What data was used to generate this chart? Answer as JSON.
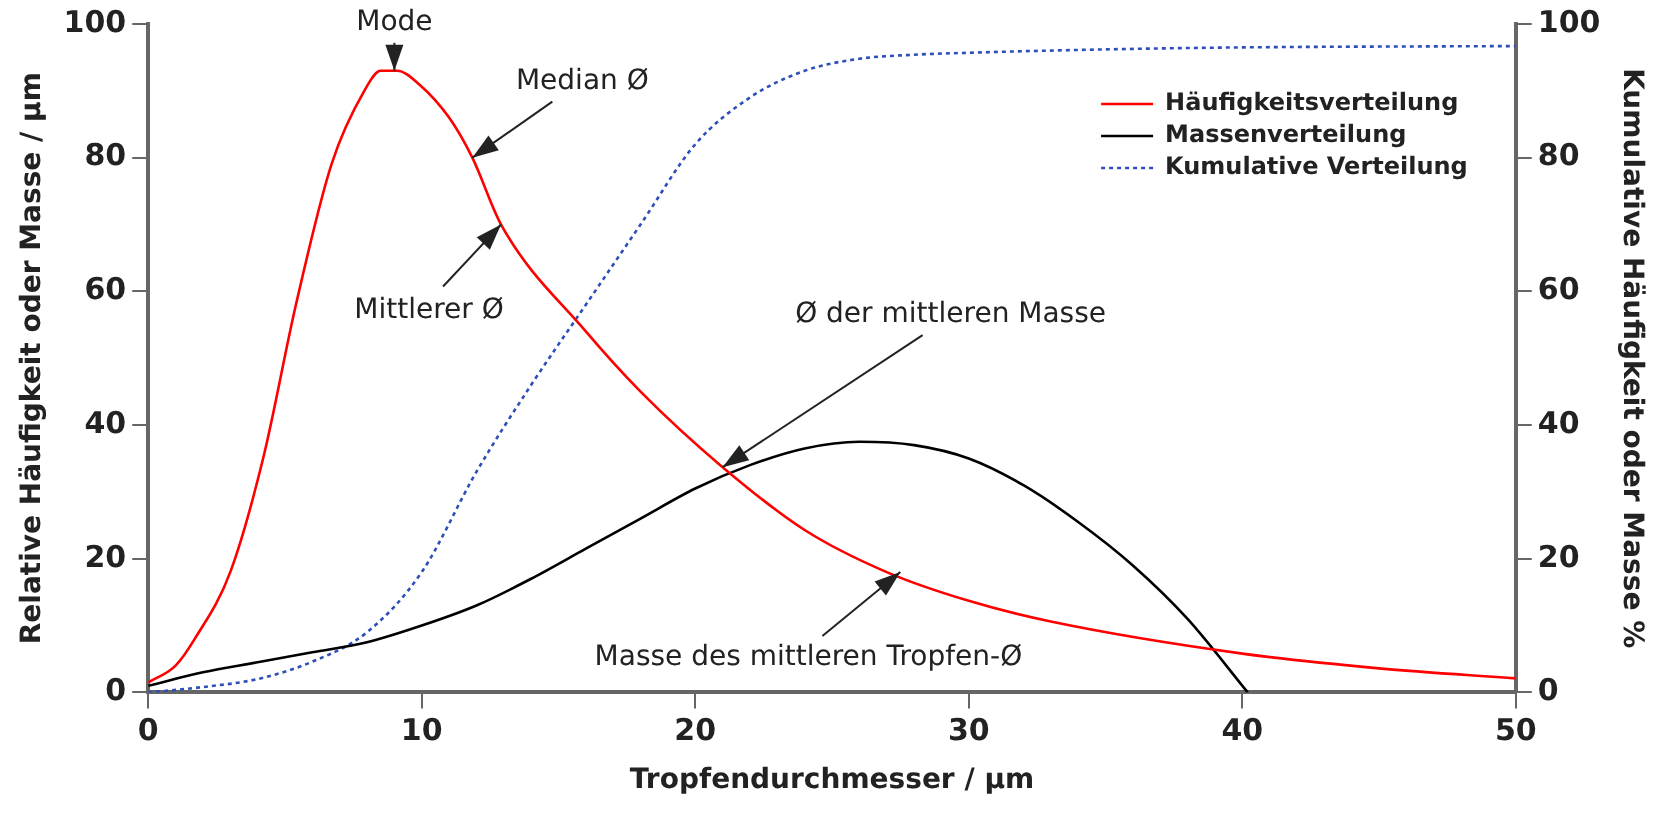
{
  "chart_data": {
    "type": "line",
    "xlabel": "Tropfendurchmesser / µm",
    "ylabel": "Relative Häufigkeit oder Masse / µm",
    "y2label": "Kumulative Häufigkeit oder Masse %",
    "xlim": [
      0,
      50
    ],
    "xticks": [
      0,
      10,
      20,
      30,
      40,
      50
    ],
    "ylim": [
      0,
      100
    ],
    "yticks": [
      0,
      20,
      40,
      60,
      80,
      100
    ],
    "y2lim": [
      0,
      100
    ],
    "y2ticks": [
      0,
      20,
      40,
      60,
      80,
      100
    ],
    "grid": false,
    "legend": "top right",
    "marker": "none",
    "series": [
      {
        "name": "Häufigkeitsverteilung",
        "color": "#ff0000",
        "line_style": "solid",
        "x": [
          0,
          1,
          1.7,
          3,
          4.2,
          5.4,
          6.7,
          7.9,
          8.5,
          9.1,
          9.9,
          11,
          11.85,
          12.9,
          16,
          18,
          21,
          24,
          27,
          30,
          33,
          40,
          45,
          50
        ],
        "values": [
          1.5,
          4,
          8,
          18,
          35,
          58,
          79,
          90,
          93,
          93,
          91,
          86,
          80,
          70,
          54,
          45,
          33.7,
          24.3,
          18,
          13.7,
          10.6,
          5.8,
          3.6,
          2.1
        ]
      },
      {
        "name": "Massenverteilung",
        "color": "#000000",
        "line_style": "solid",
        "x": [
          0,
          2,
          4,
          6,
          8,
          10,
          12,
          14,
          16,
          18,
          20,
          22,
          24,
          26,
          28,
          30,
          32,
          34,
          36,
          38,
          40.2
        ],
        "values": [
          1,
          3,
          4.5,
          6,
          7.5,
          10,
          13,
          17,
          21.5,
          26,
          30.5,
          34,
          36.5,
          37.5,
          37,
          35,
          31,
          25.5,
          19,
          11,
          0
        ]
      },
      {
        "name": "Kumulative Verteilung",
        "color": "#2e4fb8",
        "line_style": "dotted",
        "x": [
          0,
          2,
          4,
          6,
          8,
          10,
          12,
          14,
          16,
          18,
          20,
          22,
          24,
          26,
          28,
          30,
          35,
          40,
          50
        ],
        "values": [
          0,
          0.8,
          2,
          4.6,
          9,
          18,
          33,
          46,
          58,
          70,
          82,
          89,
          93,
          94.8,
          95.4,
          95.7,
          96.2,
          96.5,
          96.7
        ]
      }
    ],
    "annotations": [
      {
        "text": "Mode",
        "x": 9,
        "y": 93
      },
      {
        "text": "Median Ø",
        "x": 11.85,
        "y": 80
      },
      {
        "text": "Mittlerer Ø",
        "x": 12.9,
        "y": 70
      },
      {
        "text": "Ø der mittleren Masse",
        "x": 21,
        "y": 33.7
      },
      {
        "text": "Masse des mittleren Tropfen-Ø",
        "x": 27.5,
        "y": 18
      }
    ]
  }
}
